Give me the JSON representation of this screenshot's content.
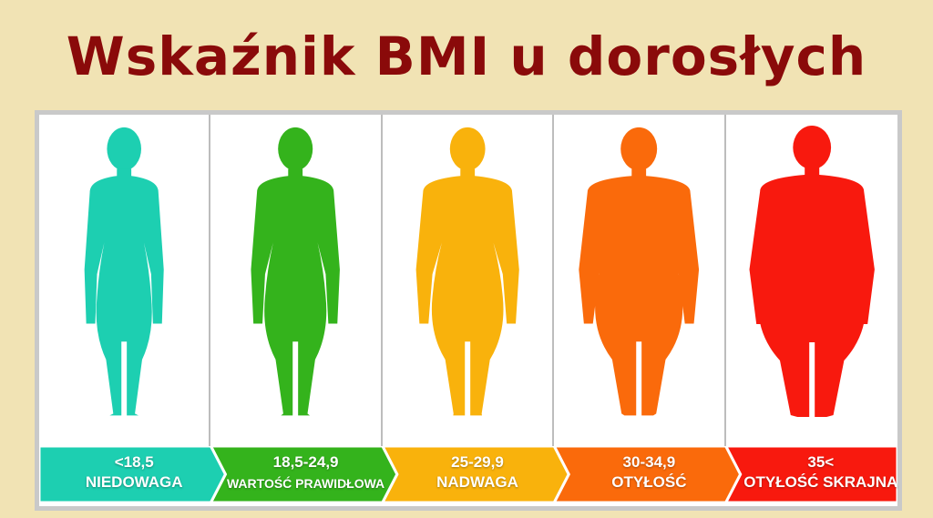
{
  "title": "Wskaźnik BMI u dorosłych",
  "categories": [
    {
      "range": "<18,5",
      "label": "NIEDOWAGA",
      "color": "#1dcfb1",
      "build": 1.0
    },
    {
      "range": "18,5-24,9",
      "label": "WARTOŚĆ PRAWIDŁOWA",
      "color": "#34b31c",
      "build": 1.12
    },
    {
      "range": "25-29,9",
      "label": "NADWAGA",
      "color": "#f9b20c",
      "build": 1.3
    },
    {
      "range": "30-34,9",
      "label": "OTYŁOŚĆ",
      "color": "#fa6a0b",
      "build": 1.6
    },
    {
      "range": "35<",
      "label": "OTYŁOŚĆ SKRAJNA",
      "color": "#f8190e",
      "build": 1.95
    }
  ]
}
